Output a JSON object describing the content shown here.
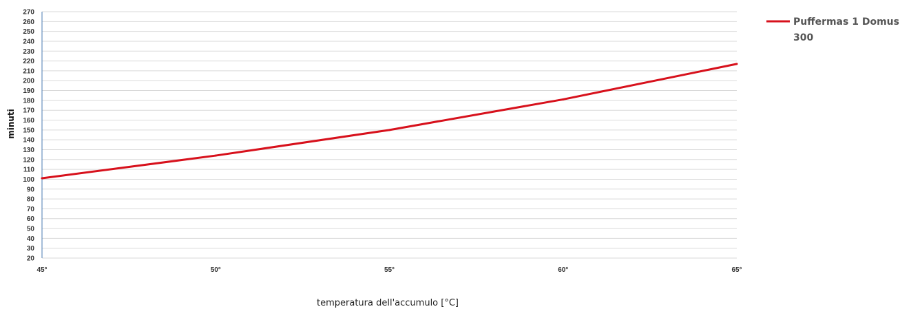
{
  "chart_data": {
    "type": "line",
    "categories": [
      "45°",
      "50°",
      "55°",
      "60°",
      "65°"
    ],
    "series": [
      {
        "name": "Puffermas 1 Domus 300",
        "name_lines": [
          "Puffermas 1 Domus",
          "300"
        ],
        "values": [
          101,
          124,
          150,
          181,
          217
        ],
        "color": "#d7111c"
      }
    ],
    "title": "",
    "xlabel": "temperatura dell'accumulo [°C]",
    "ylabel": "minuti",
    "ylim": [
      20,
      270
    ],
    "ytick_step": 10,
    "grid": true,
    "legend_position": "top-right"
  }
}
